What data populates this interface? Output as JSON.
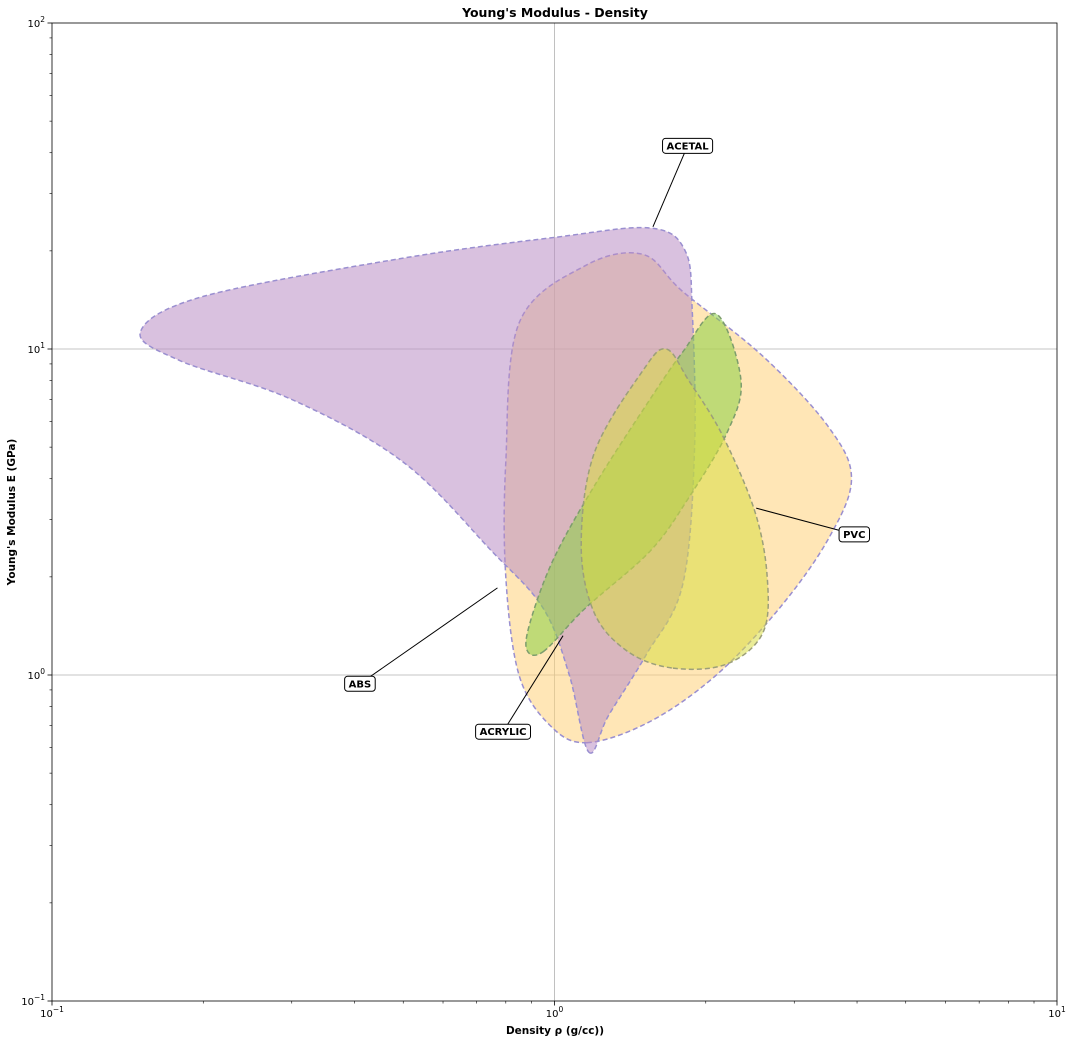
{
  "chart_data": {
    "type": "area",
    "title": "Young's Modulus - Density",
    "xlabel": "Density ρ (g/cc))",
    "ylabel": "Young's Modulus E (GPa)",
    "xscale": "log",
    "yscale": "log",
    "xlim": [
      0.1,
      10
    ],
    "ylim": [
      0.1,
      100
    ],
    "grid": true,
    "x_ticks": [
      {
        "value": 0.1,
        "base": "10",
        "exp": "−1"
      },
      {
        "value": 1,
        "base": "10",
        "exp": "0"
      },
      {
        "value": 10,
        "base": "10",
        "exp": "1"
      }
    ],
    "y_ticks": [
      {
        "value": 0.1,
        "base": "10",
        "exp": "−1"
      },
      {
        "value": 1,
        "base": "10",
        "exp": "0"
      },
      {
        "value": 10,
        "base": "10",
        "exp": "1"
      },
      {
        "value": 100,
        "base": "10",
        "exp": "2"
      }
    ],
    "series": [
      {
        "name": "ABS",
        "fill": "#ffd27a",
        "stroke": "#9a8fd0",
        "region": [
          [
            1.16,
            0.62
          ],
          [
            1.55,
            0.72
          ],
          [
            2.1,
            1.0
          ],
          [
            2.8,
            1.6
          ],
          [
            3.5,
            2.6
          ],
          [
            3.9,
            4.0
          ],
          [
            3.5,
            5.8
          ],
          [
            2.6,
            9.5
          ],
          [
            1.8,
            15
          ],
          [
            1.5,
            19.5
          ],
          [
            1.15,
            18
          ],
          [
            0.85,
            12
          ],
          [
            0.8,
            4.5
          ],
          [
            0.8,
            2.0
          ],
          [
            0.85,
            1.0
          ],
          [
            0.98,
            0.7
          ]
        ],
        "label": {
          "text": "ABS",
          "x": 0.41,
          "y": 0.94
        },
        "anchor": {
          "x": 0.77,
          "y": 1.85
        }
      },
      {
        "name": "ACETAL",
        "fill": "#b98ec5",
        "stroke": "#9a8fd0",
        "region": [
          [
            1.17,
            0.58
          ],
          [
            1.28,
            0.75
          ],
          [
            1.52,
            1.15
          ],
          [
            1.8,
            1.9
          ],
          [
            1.9,
            5.0
          ],
          [
            1.88,
            13
          ],
          [
            1.82,
            20
          ],
          [
            1.55,
            23.5
          ],
          [
            1.0,
            22
          ],
          [
            0.5,
            19
          ],
          [
            0.2,
            14.5
          ],
          [
            0.15,
            11.3
          ],
          [
            0.18,
            9.2
          ],
          [
            0.3,
            7.0
          ],
          [
            0.5,
            4.5
          ],
          [
            0.75,
            2.4
          ],
          [
            0.95,
            1.6
          ],
          [
            1.07,
            1.0
          ]
        ],
        "label": {
          "text": "ACETAL",
          "x": 1.84,
          "y": 42
        },
        "anchor": {
          "x": 1.57,
          "y": 23.7
        }
      },
      {
        "name": "ACRYLIC",
        "fill": "#8bd044",
        "stroke": "#7d9d6d",
        "region": [
          [
            0.95,
            1.18
          ],
          [
            1.15,
            1.6
          ],
          [
            1.55,
            2.4
          ],
          [
            1.85,
            3.5
          ],
          [
            2.2,
            5.5
          ],
          [
            2.35,
            8.0
          ],
          [
            2.1,
            12.8
          ],
          [
            1.8,
            9.8
          ],
          [
            1.5,
            6.5
          ],
          [
            1.2,
            3.8
          ],
          [
            1.0,
            2.3
          ],
          [
            0.9,
            1.5
          ],
          [
            0.88,
            1.2
          ]
        ],
        "label": {
          "text": "ACRYLIC",
          "x": 0.79,
          "y": 0.67
        },
        "anchor": {
          "x": 1.04,
          "y": 1.32
        }
      },
      {
        "name": "PVC",
        "fill": "#d8dc42",
        "stroke": "#9c9f7a",
        "region": [
          [
            1.72,
            1.05
          ],
          [
            2.2,
            1.08
          ],
          [
            2.6,
            1.35
          ],
          [
            2.65,
            2.0
          ],
          [
            2.5,
            3.2
          ],
          [
            2.15,
            5.5
          ],
          [
            1.85,
            8.0
          ],
          [
            1.67,
            10.0
          ],
          [
            1.5,
            8.6
          ],
          [
            1.2,
            4.8
          ],
          [
            1.13,
            2.5
          ],
          [
            1.2,
            1.55
          ],
          [
            1.4,
            1.18
          ]
        ],
        "label": {
          "text": "PVC",
          "x": 3.95,
          "y": 2.7
        },
        "anchor": {
          "x": 2.52,
          "y": 3.25
        }
      }
    ]
  }
}
